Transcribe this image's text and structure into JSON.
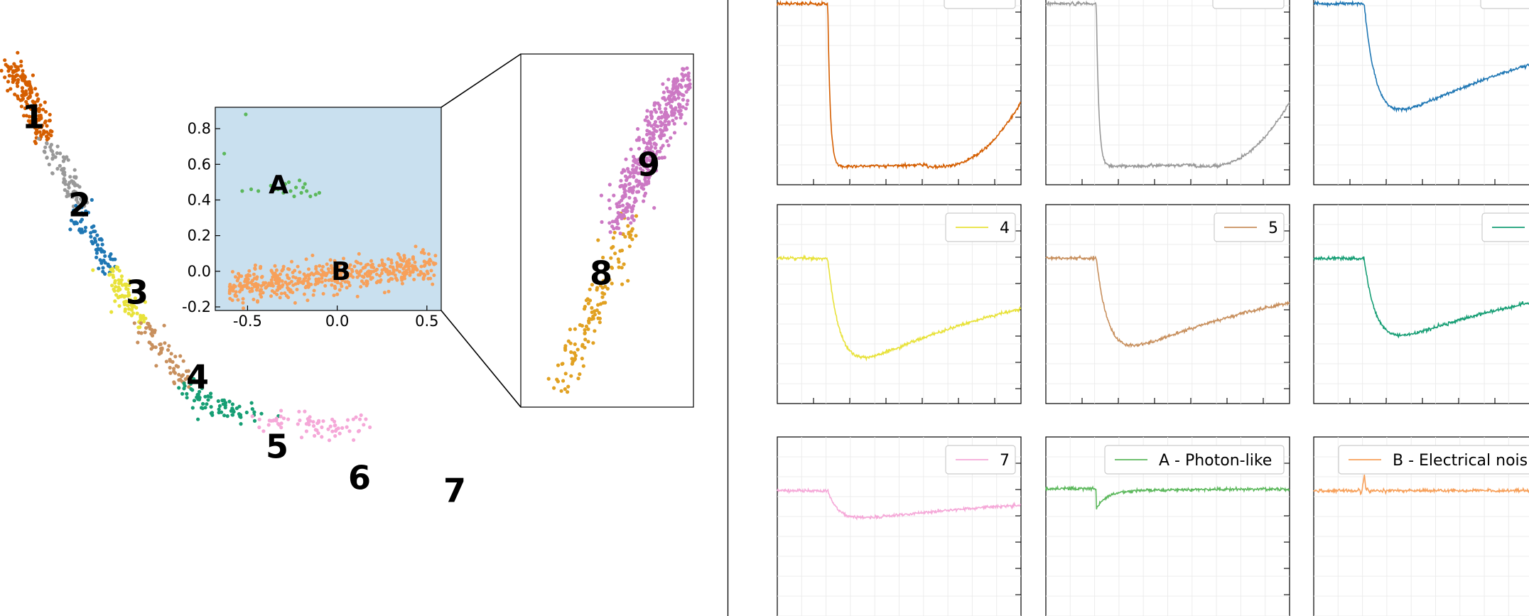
{
  "colors": {
    "c1": "#d55e00",
    "c2": "#999999",
    "c3": "#1f77b4",
    "c4": "#e8e23a",
    "c5": "#c8905e",
    "c6": "#169e74",
    "c7": "#f5a8d8",
    "c8": "#e1a122",
    "c9": "#cc79c4",
    "cA": "#5cb85c",
    "cB": "#f7a05a",
    "inset_bg": "#c9e0ef"
  },
  "chart_data": [
    {
      "type": "scatter",
      "id": "embedding",
      "title": "",
      "clusters": [
        {
          "label": "1",
          "color_key": "c1",
          "x": 0.02,
          "y": 0.8,
          "n": 170,
          "spread": 0.03
        },
        {
          "label": "2",
          "color_key": "c2",
          "x": 0.12,
          "y": 0.65,
          "n": 80,
          "spread": 0.02
        },
        {
          "label": "3",
          "color_key": "c3",
          "x": 0.19,
          "y": 0.53,
          "n": 75,
          "spread": 0.02
        },
        {
          "label": "4",
          "color_key": "c4",
          "x": 0.27,
          "y": 0.38,
          "n": 80,
          "spread": 0.02
        },
        {
          "label": "5",
          "color_key": "c5",
          "x": 0.37,
          "y": 0.26,
          "n": 70,
          "spread": 0.02
        },
        {
          "label": "6",
          "color_key": "c6",
          "x": 0.49,
          "y": 0.2,
          "n": 75,
          "spread": 0.02
        },
        {
          "label": "7",
          "color_key": "c7",
          "x": 0.63,
          "y": 0.18,
          "n": 70,
          "spread": 0.02
        }
      ]
    },
    {
      "type": "scatter",
      "id": "inset-AB",
      "xticks": [
        "-0.5",
        "0.0",
        "0.5"
      ],
      "yticks": [
        "-0.2",
        "0.0",
        "0.2",
        "0.4",
        "0.6",
        "0.8"
      ],
      "xlim": [
        -0.68,
        0.58
      ],
      "ylim": [
        -0.22,
        0.92
      ],
      "clusters": [
        {
          "label": "A",
          "color_key": "cA",
          "cx": -0.25,
          "cy": 0.47,
          "n": 22
        },
        {
          "label": "B",
          "color_key": "cB",
          "cx": 0.0,
          "cy": -0.03,
          "n": 480
        }
      ]
    },
    {
      "type": "scatter",
      "id": "zoom-89",
      "clusters": [
        {
          "label": "8",
          "color_key": "c8",
          "n": 130
        },
        {
          "label": "9",
          "color_key": "c9",
          "n": 400
        }
      ]
    },
    {
      "type": "line",
      "id": "waveforms",
      "panels": [
        {
          "row": 0,
          "col": 0,
          "legend": "",
          "color_key": "c1",
          "baseline": 0.09,
          "depth": 0.82,
          "kind": "deep"
        },
        {
          "row": 0,
          "col": 1,
          "legend": "",
          "color_key": "c2",
          "baseline": 0.09,
          "depth": 0.82,
          "kind": "deep2"
        },
        {
          "row": 0,
          "col": 2,
          "legend": "",
          "color_key": "c3",
          "baseline": 0.09,
          "depth": 0.62,
          "kind": "medium"
        },
        {
          "row": 1,
          "col": 0,
          "legend": "4",
          "color_key": "c4",
          "baseline": 0.27,
          "depth": 0.58,
          "kind": "medium"
        },
        {
          "row": 1,
          "col": 1,
          "legend": "5",
          "color_key": "c5",
          "baseline": 0.27,
          "depth": 0.51,
          "kind": "medium"
        },
        {
          "row": 1,
          "col": 2,
          "legend": "",
          "color_key": "c6",
          "baseline": 0.27,
          "depth": 0.45,
          "kind": "medium"
        },
        {
          "row": 2,
          "col": 0,
          "legend": "7",
          "color_key": "c7",
          "baseline": 0.27,
          "depth": 0.33,
          "kind": "shallow"
        },
        {
          "row": 2,
          "col": 1,
          "legend": "A - Photon-like",
          "color_key": "cA",
          "baseline": 0.26,
          "depth": 0.27,
          "kind": "spike"
        },
        {
          "row": 2,
          "col": 2,
          "legend": "B - Electrical nois",
          "color_key": "cB",
          "baseline": 0.27,
          "depth": 0.0,
          "kind": "noise"
        }
      ]
    }
  ]
}
